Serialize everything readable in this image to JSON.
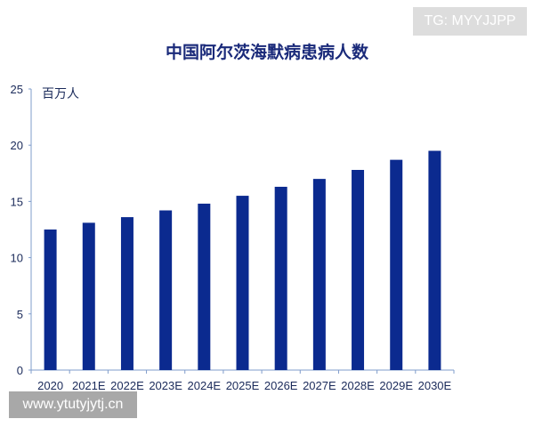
{
  "watermark_top": "TG: MYYJJPP",
  "watermark_bottom": "www.ytutyjytj.cn",
  "chart_data": {
    "type": "bar",
    "title": "中国阿尔茨海默病患病人数",
    "ylabel": "百万人",
    "xlabel": "",
    "ylim": [
      0,
      25
    ],
    "yticks": [
      0,
      5,
      10,
      15,
      20,
      25
    ],
    "grid": false,
    "categories": [
      "2020",
      "2021E",
      "2022E",
      "2023E",
      "2024E",
      "2025E",
      "2026E",
      "2027E",
      "2028E",
      "2029E",
      "2030E"
    ],
    "values": [
      12.5,
      13.1,
      13.6,
      14.2,
      14.8,
      15.5,
      16.3,
      17.0,
      17.8,
      18.7,
      19.5
    ],
    "bar_color": "#0b2a8f",
    "axis_color": "#7f9ccb"
  }
}
